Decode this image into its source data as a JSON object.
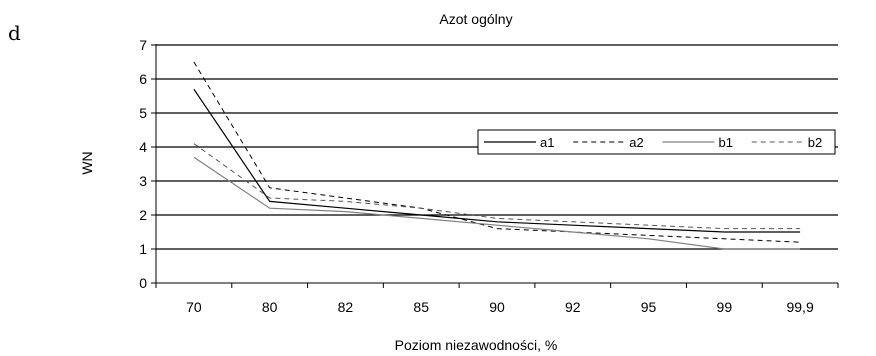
{
  "panel_letter": "d",
  "chart_data": {
    "type": "line",
    "title": "Azot ogólny",
    "xlabel": "Poziom niezawodności, %",
    "ylabel": "WN",
    "categories": [
      "70",
      "80",
      "82",
      "85",
      "90",
      "92",
      "95",
      "99",
      "99,9"
    ],
    "ylim": [
      0,
      7
    ],
    "yticks": [
      0,
      1,
      2,
      3,
      4,
      5,
      6,
      7
    ],
    "grid": true,
    "legend_position": "right",
    "series": [
      {
        "name": "a1",
        "values": [
          5.7,
          2.4,
          2.2,
          2.0,
          1.8,
          1.7,
          1.6,
          1.5,
          1.5
        ],
        "color": "#000000",
        "dash": "solid",
        "width": 1.2
      },
      {
        "name": "a2",
        "values": [
          6.5,
          2.8,
          2.5,
          2.2,
          1.6,
          1.5,
          1.4,
          1.3,
          1.2
        ],
        "color": "#000000",
        "dash": "dashed",
        "width": 1.0
      },
      {
        "name": "b1",
        "values": [
          3.7,
          2.2,
          2.1,
          1.9,
          1.7,
          1.5,
          1.3,
          1.0,
          1.0
        ],
        "color": "#808080",
        "dash": "solid",
        "width": 1.2
      },
      {
        "name": "b2",
        "values": [
          4.1,
          2.5,
          2.4,
          2.2,
          1.9,
          1.8,
          1.7,
          1.6,
          1.6
        ],
        "color": "#555555",
        "dash": "dashed",
        "width": 1.0
      }
    ]
  }
}
